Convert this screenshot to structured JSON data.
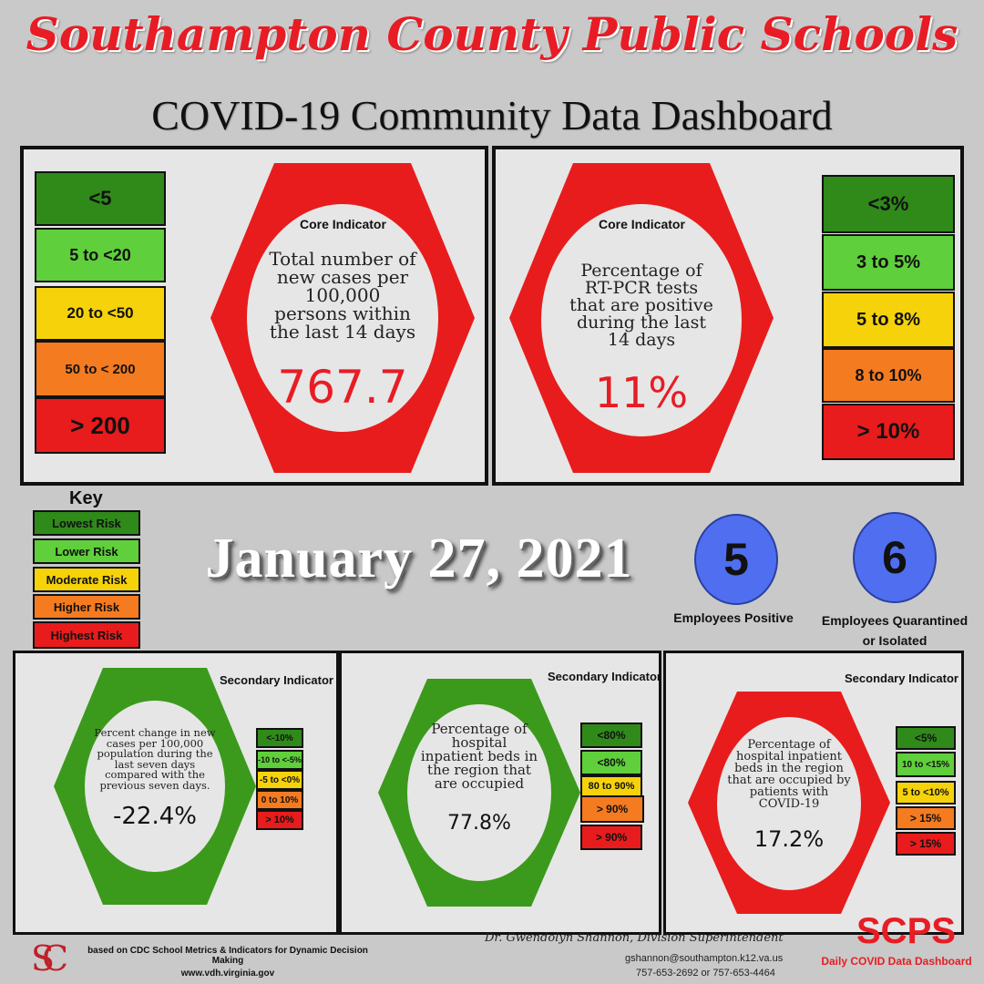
{
  "header": {
    "title": "Southampton County Public Schools",
    "subtitle": "COVID-19 Community Data Dashboard"
  },
  "core1": {
    "label": "Core Indicator",
    "description": [
      "Total number of",
      "new cases per",
      "100,000",
      "persons within",
      "the last 14 days"
    ],
    "value": "767.7",
    "scale": [
      "<5",
      "5 to  <20",
      "20 to <50",
      "50 to < 200",
      "> 200"
    ],
    "status_color": "#e81c1c"
  },
  "core2": {
    "label": "Core Indicator",
    "description": [
      "Percentage of",
      "RT-PCR tests",
      "that are positive",
      "during the last",
      "14 days"
    ],
    "value": "11%",
    "scale": [
      "<3%",
      "3 to 5%",
      "5 to 8%",
      "8 to 10%",
      "> 10%"
    ],
    "status_color": "#e81c1c"
  },
  "key": {
    "title": "Key",
    "items": [
      "Lowest Risk",
      "Lower Risk",
      "Moderate Risk",
      "Higher Risk",
      "Highest Risk"
    ]
  },
  "date": "January 27, 2021",
  "employees": {
    "positive_count": "5",
    "positive_label": "Employees Positive",
    "quarantined_count": "6",
    "quarantined_label_1": "Employees Quarantined",
    "quarantined_label_2": "or Isolated"
  },
  "sec1": {
    "label": "Secondary Indicator",
    "description": [
      "Percent change in new",
      "cases per 100,000",
      "population during the",
      "last seven days",
      "compared with the",
      "previous seven days."
    ],
    "value": "-22.4%",
    "scale": [
      "<-10%",
      "-10 to <-5%",
      "-5 to <0%",
      "0 to 10%",
      "> 10%"
    ],
    "status_color": "#3b9a1c"
  },
  "sec2": {
    "label": "Secondary Indicator",
    "description": [
      "Percentage of",
      "hospital",
      "inpatient beds in",
      "the region that",
      "are occupied"
    ],
    "value": "77.8%",
    "scale": [
      "<80%",
      "<80%",
      "80 to 90%",
      "> 90%",
      "> 90%"
    ],
    "status_color": "#3b9a1c"
  },
  "sec3": {
    "label": "Secondary Indicator",
    "description": [
      "Percentage of",
      "hospital inpatient",
      "beds in the region",
      "that are occupied by",
      "patients with",
      "COVID-19"
    ],
    "value": "17.2%",
    "scale": [
      "<5%",
      "10 to <15%",
      "5 to <10%",
      "> 15%",
      "> 15%"
    ],
    "status_color": "#e81c1c"
  },
  "footer": {
    "logo_text": "SC",
    "source_line_1": "based on CDC School Metrics & Indicators for Dynamic Decision Making",
    "source_line_2": "www.vdh.virginia.gov",
    "superintendent": "Dr. Gwendolyn Shannon, Division Superintendent",
    "email": "gshannon@southampton.k12.va.us",
    "phone": "757-653-2692 or 757-653-4464",
    "brand": "SCPS",
    "brand_tagline": "Daily COVID Data Dashboard"
  }
}
